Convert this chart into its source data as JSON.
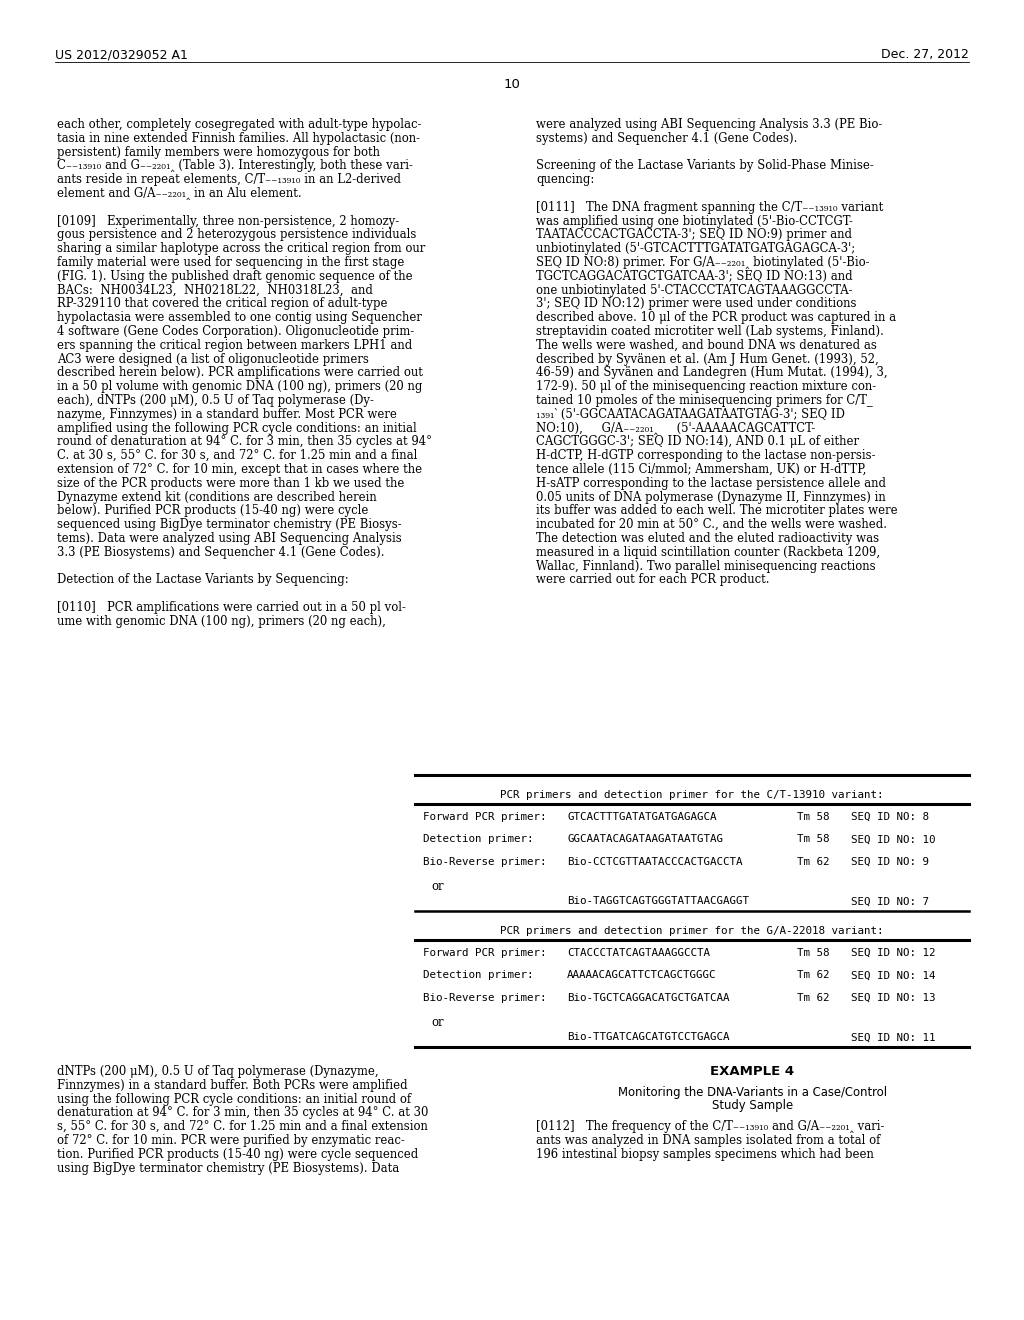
{
  "page_number": "10",
  "header_left": "US 2012/0329052 A1",
  "header_right": "Dec. 27, 2012",
  "bg_color": "#ffffff",
  "text_color": "#000000",
  "left_column_text": [
    "each other, completely cosegregated with adult-type hypolac-",
    "tasia in nine extended Finnish families. All hypolactasic (non-",
    "persistent) family members were homozygous for both",
    "C₋₋₁₃₉₁₀ and G₋₋₂₂₀₁‸ (Table 3). Interestingly, both these vari-",
    "ants reside in repeat elements, C/T₋₋₁₃₉₁₀ in an L2-derived",
    "element and G/A₋₋₂₂₀₁‸ in an Alu element.",
    "",
    "[0109]   Experimentally, three non-persistence, 2 homozy-",
    "gous persistence and 2 heterozygous persistence individuals",
    "sharing a similar haplotype across the critical region from our",
    "family material were used for sequencing in the first stage",
    "(FIG. 1). Using the published draft genomic sequence of the",
    "BACs:  NH0034L23,  NH0218L22,  NH0318L23,  and",
    "RP-329110 that covered the critical region of adult-type",
    "hypolactasia were assembled to one contig using Sequencher",
    "4 software (Gene Codes Corporation). Oligonucleotide prim-",
    "ers spanning the critical region between markers LPH1 and",
    "AC3 were designed (a list of oligonucleotide primers",
    "described herein below). PCR amplifications were carried out",
    "in a 50 pl volume with genomic DNA (100 ng), primers (20 ng",
    "each), dNTPs (200 μM), 0.5 U of Taq polymerase (Dy-",
    "nazyme, Finnzymes) in a standard buffer. Most PCR were",
    "amplified using the following PCR cycle conditions: an initial",
    "round of denaturation at 94° C. for 3 min, then 35 cycles at 94°",
    "C. at 30 s, 55° C. for 30 s, and 72° C. for 1.25 min and a final",
    "extension of 72° C. for 10 min, except that in cases where the",
    "size of the PCR products were more than 1 kb we used the",
    "Dynazyme extend kit (conditions are described herein",
    "below). Purified PCR products (15-40 ng) were cycle",
    "sequenced using BigDye terminator chemistry (PE Biosys-",
    "tems). Data were analyzed using ABI Sequencing Analysis",
    "3.3 (PE Biosystems) and Sequencher 4.1 (Gene Codes).",
    "",
    "Detection of the Lactase Variants by Sequencing:",
    "",
    "[0110]   PCR amplifications were carried out in a 50 pl vol-",
    "ume with genomic DNA (100 ng), primers (20 ng each),"
  ],
  "right_column_text": [
    "were analyzed using ABI Sequencing Analysis 3.3 (PE Bio-",
    "systems) and Sequencher 4.1 (Gene Codes).",
    "",
    "Screening of the Lactase Variants by Solid-Phase Minise-",
    "quencing:",
    "",
    "[0111]   The DNA fragment spanning the C/T₋₋₁₃₉₁₀ variant",
    "was amplified using one biotinylated (5'-Bio-CCTCGT-",
    "TAATACCCACTGACCTA-3'; SEQ ID NO:9) primer and",
    "unbiotinylated (5'-GTCACTTTGATATGATGAGAGCA-3';",
    "SEQ ID NO:8) primer. For G/A₋₋₂₂₀₁‸ biotinylated (5'-Bio-",
    "TGCTCAGGACATGCTGATCAA-3'; SEQ ID NO:13) and",
    "one unbiotinylated 5'-CTACCCTATCAGTAAAGGCCTA-",
    "3'; SEQ ID NO:12) primer were used under conditions",
    "described above. 10 μl of the PCR product was captured in a",
    "streptavidin coated microtiter well (Lab systems, Finland).",
    "The wells were washed, and bound DNA ws denatured as",
    "described by Syvänen et al. (Am J Hum Genet. (1993), 52,",
    "46-59) and Syvänen and Landegren (Hum Mutat. (1994), 3,",
    "172-9). 50 μl of the minisequencing reaction mixture con-",
    "tained 10 pmoles of the minisequencing primers for C/T_",
    "₁₃₉₁‵ (5'-GGCAATACAGATAAGATAATGTAG-3'; SEQ ID",
    "NO:10),     G/A₋₋₂₂₀₁‸     (5'-AAAAACAGCATTCT-",
    "CAGCTGGGC-3'; SEQ ID NO:14), AND 0.1 μL of either",
    "H-dCTP, H-dGTP corresponding to the lactase non-persis-",
    "tence allele (115 Ci/mmol; Ammersham, UK) or H-dTTP,",
    "H-sATP corresponding to the lactase persistence allele and",
    "0.05 units of DNA polymerase (Dynazyme II, Finnzymes) in",
    "its buffer was added to each well. The microtiter plates were",
    "incubated for 20 min at 50° C., and the wells were washed.",
    "The detection was eluted and the eluted radioactivity was",
    "measured in a liquid scintillation counter (Rackbeta 1209,",
    "Wallac, Finnland). Two parallel minisequencing reactions",
    "were carried out for each PCR product."
  ],
  "bottom_left_text": [
    "dNTPs (200 μM), 0.5 U of Taq polymerase (Dynazyme,",
    "Finnzymes) in a standard buffer. Both PCRs were amplified",
    "using the following PCR cycle conditions: an initial round of",
    "denaturation at 94° C. for 3 min, then 35 cycles at 94° C. at 30",
    "s, 55° C. for 30 s, and 72° C. for 1.25 min and a final extension",
    "of 72° C. for 10 min. PCR were purified by enzymatic reac-",
    "tion. Purified PCR products (15-40 ng) were cycle sequenced",
    "using BigDye terminator chemistry (PE Biosystems). Data"
  ],
  "bottom_right_text_example": "EXAMPLE 4",
  "bottom_right_text_subtitle1": "Monitoring the DNA-Variants in a Case/Control",
  "bottom_right_text_subtitle2": "Study Sample",
  "bottom_right_text_body": [
    "[0112]   The frequency of the C/T₋₋₁₃₉₁₀ and G/A₋₋₂₂₀₁‸ vari-",
    "ants was analyzed in DNA samples isolated from a total of",
    "196 intestinal biopsy samples specimens which had been"
  ],
  "table_title_1_pre": "PCR primers and detection primer for the C/T",
  "table_title_1_sub": "-13910",
  "table_title_1_post": " variant:",
  "table_rows_1": [
    [
      "Forward PCR primer:",
      "GTCACTTTGATATGATGAGAGCA",
      "Tm 58",
      "SEQ ID NO: 8"
    ],
    [
      "Detection primer:",
      "GGCAATACAGATAAGATAATGTAG",
      "Tm 58",
      "SEQ ID NO: 10"
    ],
    [
      "Bio-Reverse primer:",
      "Bio-CCTCGTTAATACCCACTGACCTA",
      "Tm 62",
      "SEQ ID NO: 9"
    ],
    [
      "or",
      "",
      "",
      ""
    ],
    [
      "",
      "Bio-TAGGTCAGTGGGTATTAACGAGGT",
      "",
      "SEQ ID NO: 7"
    ]
  ],
  "table_title_2_pre": "PCR primers and detection primer for the G/A",
  "table_title_2_sub": "-22018",
  "table_title_2_post": " variant:",
  "table_rows_2": [
    [
      "Forward PCR primer:",
      "CTACCCTATCAGTAAAGGCCTA",
      "Tm 58",
      "SEQ ID NO: 12"
    ],
    [
      "Detection primer:",
      "AAAAACAGCATTCTCAGCTGGGC",
      "Tm 62",
      "SEQ ID NO: 14"
    ],
    [
      "Bio-Reverse primer:",
      "Bio-TGCTCAGGACATGCTGATCAA",
      "Tm 62",
      "SEQ ID NO: 13"
    ],
    [
      "or",
      "",
      "",
      ""
    ],
    [
      "",
      "Bio-TTGATCAGCATGTCCTGAGCA",
      "",
      "SEQ ID NO: 11"
    ]
  ]
}
